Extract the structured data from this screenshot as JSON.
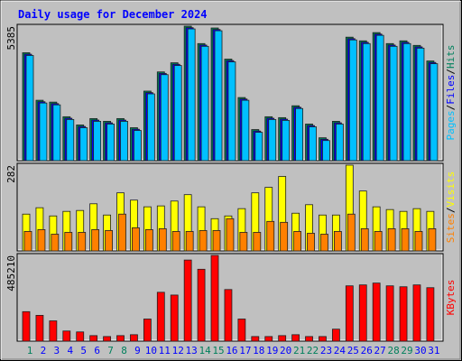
{
  "chart_data": [
    {
      "type": "bar",
      "title": "Daily usage for December 2024",
      "separator": "/",
      "ylim": [
        0,
        5385
      ],
      "yticks": [
        5385
      ],
      "series": [
        {
          "name": "Pages",
          "color": "#00c0ff",
          "values": [
            4212,
            2308,
            2234,
            1648,
            1319,
            1575,
            1465,
            1575,
            1209,
            2674,
            3443,
            3809,
            5275,
            4578,
            5202,
            3956,
            2417,
            1135,
            1648,
            1612,
            2088,
            1355,
            806,
            1465,
            4835,
            4688,
            5018,
            4578,
            4688,
            4505,
            3882
          ]
        },
        {
          "name": "Files",
          "color": "#0000ff",
          "values": [
            4262,
            2358,
            2284,
            1698,
            1369,
            1625,
            1515,
            1625,
            1259,
            2724,
            3493,
            3859,
            5325,
            4628,
            5252,
            4006,
            2467,
            1185,
            1698,
            1662,
            2138,
            1405,
            856,
            1515,
            4885,
            4738,
            5068,
            4628,
            4738,
            4555,
            3932
          ]
        },
        {
          "name": "Hits",
          "color": "#00805c",
          "values": [
            4322,
            2418,
            2344,
            1758,
            1429,
            1685,
            1575,
            1685,
            1319,
            2784,
            3553,
            3919,
            5385,
            4688,
            5312,
            4066,
            2527,
            1245,
            1758,
            1722,
            2198,
            1465,
            916,
            1575,
            4945,
            4798,
            5128,
            4688,
            4798,
            4615,
            3992
          ]
        }
      ]
    },
    {
      "type": "bar",
      "separator": "/",
      "ylim": [
        0,
        282
      ],
      "yticks": [
        282
      ],
      "series": [
        {
          "name": "Sites",
          "color": "#ff8000",
          "values": [
            64,
            70,
            55,
            61,
            61,
            70,
            67,
            121,
            76,
            70,
            73,
            64,
            64,
            67,
            67,
            106,
            61,
            61,
            97,
            94,
            64,
            58,
            55,
            64,
            121,
            73,
            64,
            73,
            73,
            64,
            73
          ]
        },
        {
          "name": "Visits",
          "color": "#ffff00",
          "values": [
            121,
            142,
            115,
            130,
            133,
            155,
            118,
            191,
            167,
            145,
            148,
            164,
            185,
            145,
            106,
            115,
            139,
            191,
            209,
            245,
            124,
            152,
            118,
            118,
            282,
            197,
            145,
            136,
            130,
            139,
            130
          ]
        }
      ]
    },
    {
      "type": "bar",
      "ylim": [
        0,
        485210
      ],
      "yticks": [
        485210
      ],
      "categories": [
        "1",
        "2",
        "3",
        "4",
        "5",
        "6",
        "7",
        "8",
        "9",
        "10",
        "11",
        "12",
        "13",
        "14",
        "15",
        "16",
        "17",
        "18",
        "19",
        "20",
        "21",
        "22",
        "23",
        "24",
        "25",
        "26",
        "27",
        "28",
        "29",
        "30",
        "31"
      ],
      "category_colors": [
        "#00805c",
        "#0000ff",
        "#0000ff",
        "#0000ff",
        "#0000ff",
        "#0000ff",
        "#00805c",
        "#00805c",
        "#0000ff",
        "#0000ff",
        "#0000ff",
        "#0000ff",
        "#0000ff",
        "#00805c",
        "#00805c",
        "#0000ff",
        "#0000ff",
        "#0000ff",
        "#0000ff",
        "#0000ff",
        "#00805c",
        "#00805c",
        "#0000ff",
        "#0000ff",
        "#0000ff",
        "#0000ff",
        "#0000ff",
        "#00805c",
        "#00805c",
        "#0000ff",
        "#0000ff"
      ],
      "series": [
        {
          "name": "KBytes",
          "color": "#ff0000",
          "values": [
            166944,
            146076,
            114774,
            57391,
            52170,
            31302,
            26085,
            31302,
            36519,
            125208,
            276501,
            260850,
            459096,
            406926,
            485210,
            292152,
            125208,
            26085,
            26085,
            31302,
            36519,
            26085,
            26085,
            67821,
            313020,
            318237,
            328671,
            313020,
            307803,
            318237,
            302586
          ]
        }
      ]
    }
  ]
}
